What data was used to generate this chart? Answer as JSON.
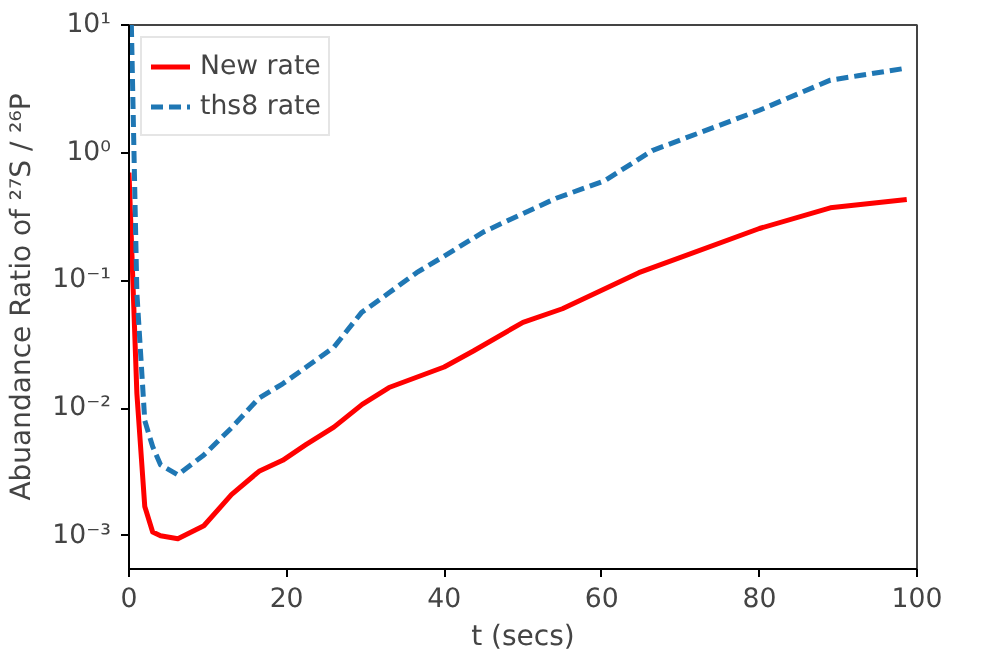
{
  "chart_data": {
    "type": "line",
    "xlabel": "t (secs)",
    "ylabel": "Abuandance Ratio of ²⁷S / ²⁶P",
    "log": "y",
    "xlim": [
      0,
      100
    ],
    "ylim": [
      0.00055,
      10
    ],
    "xticks": [
      0,
      20,
      40,
      60,
      80,
      100
    ],
    "yticks": [
      {
        "value": 10,
        "label": "10¹"
      },
      {
        "value": 1,
        "label": "10⁰"
      },
      {
        "value": 0.1,
        "label": "10⁻¹"
      },
      {
        "value": 0.01,
        "label": "10⁻²"
      },
      {
        "value": 0.001,
        "label": "10⁻³"
      }
    ],
    "grid": false,
    "legend": "top left",
    "series": [
      {
        "name": "New rate",
        "color": "#ff0000",
        "line_style": "solid",
        "x": [
          0,
          1,
          2,
          3,
          4,
          6.2,
          9.5,
          13,
          16.5,
          19.5,
          22.5,
          26,
          29.6,
          33,
          40,
          43.7,
          50,
          55,
          61.2,
          64.7,
          80,
          89,
          94,
          98.7
        ],
        "values": [
          0.7,
          0.013,
          0.0017,
          0.00107,
          0.001,
          0.00095,
          0.0012,
          0.0021,
          0.0032,
          0.0039,
          0.0052,
          0.0071,
          0.0107,
          0.0145,
          0.021,
          0.028,
          0.047,
          0.06,
          0.091,
          0.115,
          0.255,
          0.37,
          0.4,
          0.43
        ]
      },
      {
        "name": "ths8 rate",
        "color": "#1f77b4",
        "line_style": "dashed",
        "x": [
          0.3,
          1,
          2,
          3,
          4,
          6.2,
          9.5,
          13,
          16.5,
          19.5,
          22.5,
          26,
          29.5,
          33,
          36.5,
          40,
          45,
          54.2,
          60.3,
          66.4,
          80,
          89,
          92.5,
          98.7
        ],
        "values": [
          10,
          0.08,
          0.008,
          0.005,
          0.0036,
          0.003,
          0.0043,
          0.007,
          0.012,
          0.0155,
          0.021,
          0.03,
          0.056,
          0.08,
          0.115,
          0.155,
          0.24,
          0.44,
          0.6,
          1.04,
          2.15,
          3.7,
          4.0,
          4.6
        ]
      }
    ]
  }
}
